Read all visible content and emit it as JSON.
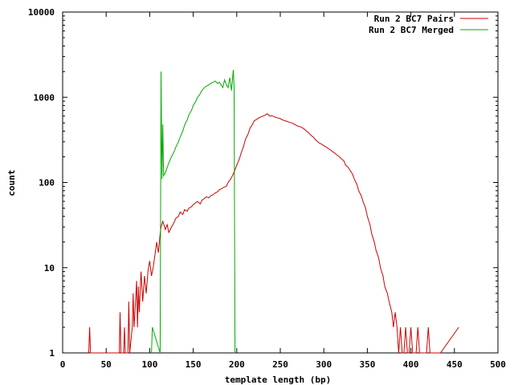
{
  "chart_data": {
    "type": "line",
    "title": "",
    "xlabel": "template length (bp)",
    "ylabel": "count",
    "xlim": [
      0,
      500
    ],
    "ylim": [
      1,
      10000
    ],
    "y_scale": "log",
    "grid": false,
    "legend_position": "top-right",
    "x_ticks": [
      "0",
      "50",
      "100",
      "150",
      "200",
      "250",
      "300",
      "350",
      "400",
      "450",
      "500"
    ],
    "y_ticks": [
      "1",
      "10",
      "100",
      "1000",
      "10000"
    ],
    "series": [
      {
        "name": "Run 2 BC7 Pairs",
        "color": "#cc0000",
        "x": [
          30,
          31,
          32,
          65,
          66,
          67,
          70,
          71,
          72,
          75,
          76,
          77,
          80,
          81,
          82,
          83,
          85,
          86,
          87,
          88,
          90,
          92,
          94,
          96,
          98,
          100,
          102,
          104,
          106,
          108,
          110,
          112,
          113,
          115,
          118,
          120,
          122,
          125,
          128,
          130,
          133,
          135,
          138,
          140,
          143,
          145,
          148,
          150,
          153,
          155,
          158,
          160,
          163,
          165,
          168,
          170,
          173,
          175,
          178,
          180,
          183,
          185,
          188,
          190,
          193,
          195,
          198,
          200,
          203,
          205,
          208,
          210,
          213,
          215,
          218,
          220,
          223,
          225,
          228,
          230,
          233,
          235,
          238,
          240,
          243,
          245,
          248,
          250,
          253,
          255,
          258,
          260,
          263,
          265,
          268,
          270,
          273,
          275,
          278,
          280,
          283,
          285,
          288,
          290,
          293,
          295,
          298,
          300,
          303,
          305,
          308,
          310,
          313,
          315,
          318,
          320,
          323,
          325,
          328,
          330,
          333,
          335,
          338,
          340,
          343,
          345,
          348,
          350,
          353,
          355,
          358,
          360,
          363,
          365,
          368,
          370,
          373,
          375,
          378,
          380,
          382,
          384,
          386,
          388,
          390,
          392,
          394,
          396,
          398,
          400,
          402,
          404,
          406,
          408,
          410,
          412,
          414,
          416,
          418,
          420,
          422,
          424,
          426,
          428,
          430,
          432,
          434,
          455
        ],
        "y": [
          1,
          2,
          1,
          1,
          3,
          1,
          1,
          2,
          1,
          1,
          4,
          1,
          2,
          5,
          2,
          3,
          7,
          2,
          6,
          3,
          9,
          4,
          8,
          5,
          9,
          12,
          8,
          10,
          14,
          20,
          15,
          25,
          30,
          35,
          28,
          32,
          26,
          30,
          34,
          38,
          40,
          45,
          42,
          48,
          46,
          50,
          52,
          55,
          58,
          60,
          56,
          62,
          65,
          68,
          66,
          70,
          72,
          75,
          78,
          82,
          85,
          88,
          90,
          100,
          110,
          120,
          140,
          160,
          190,
          220,
          270,
          320,
          370,
          430,
          480,
          530,
          550,
          570,
          590,
          600,
          620,
          640,
          600,
          610,
          590,
          580,
          570,
          560,
          540,
          530,
          520,
          510,
          500,
          490,
          470,
          460,
          450,
          440,
          420,
          400,
          380,
          360,
          340,
          320,
          300,
          290,
          280,
          270,
          260,
          250,
          240,
          230,
          220,
          210,
          200,
          190,
          180,
          160,
          150,
          140,
          125,
          110,
          95,
          80,
          70,
          60,
          50,
          40,
          32,
          25,
          20,
          16,
          13,
          10,
          8,
          6,
          5,
          4,
          3,
          2,
          3,
          2,
          1,
          2,
          1,
          1,
          2,
          1,
          1,
          2,
          1,
          1,
          1,
          2,
          1,
          1,
          1,
          1,
          1,
          2,
          1,
          1,
          1,
          1,
          1,
          1,
          1,
          2
        ]
      },
      {
        "name": "Run 2 BC7 Merged",
        "color": "#00aa00",
        "x": [
          102,
          103,
          112,
          113,
          114,
          115,
          116,
          118,
          120,
          122,
          125,
          128,
          130,
          133,
          135,
          138,
          140,
          143,
          145,
          148,
          150,
          153,
          155,
          158,
          160,
          163,
          165,
          168,
          170,
          173,
          175,
          178,
          180,
          182,
          184,
          186,
          188,
          190,
          192,
          194,
          196,
          197,
          198
        ],
        "y": [
          1,
          2,
          1,
          2000,
          110,
          480,
          120,
          130,
          150,
          170,
          200,
          230,
          260,
          300,
          340,
          400,
          470,
          540,
          620,
          700,
          800,
          900,
          1000,
          1100,
          1200,
          1300,
          1350,
          1400,
          1450,
          1500,
          1550,
          1450,
          1500,
          1400,
          1300,
          1600,
          1400,
          1300,
          1700,
          1200,
          2100,
          1300,
          1
        ]
      }
    ]
  }
}
